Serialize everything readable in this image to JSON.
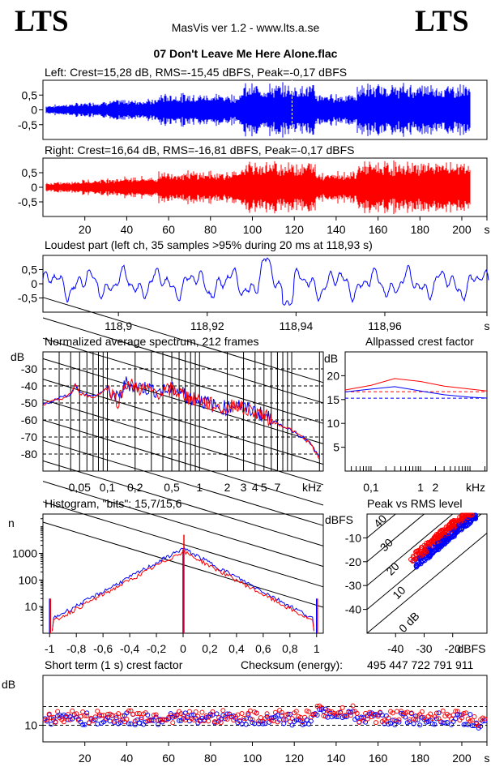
{
  "header": {
    "logo_left": "LTS",
    "logo_right": "LTS",
    "app": "MasVis ver 1.2 - www.lts.a.se",
    "track": "07 Don't Leave Me Here Alone.flac"
  },
  "colors": {
    "left": "#0000ff",
    "right": "#ff0000",
    "axis": "#000000"
  },
  "chart_data": [
    {
      "type": "line",
      "id": "left_waveform",
      "title": "Left: Crest=15,28 dB, RMS=-15,45 dBFS, Peak=-0,17 dBFS",
      "crest_db": 15.28,
      "rms_dbfs": -15.45,
      "peak_dbfs": -0.17,
      "ylim": [
        -1,
        1
      ],
      "yticks": [
        "0,5",
        "0",
        "-0,5"
      ],
      "xlim": [
        0,
        212
      ],
      "marker_s": 118.93
    },
    {
      "type": "line",
      "id": "right_waveform",
      "title": "Right: Crest=16,64 dB, RMS=-16,81 dBFS, Peak=-0,17 dBFS",
      "crest_db": 16.64,
      "rms_dbfs": -16.81,
      "peak_dbfs": -0.17,
      "ylim": [
        -1,
        1
      ],
      "yticks": [
        "0,5",
        "0",
        "-0,5"
      ],
      "xlim": [
        0,
        212
      ],
      "xticks": [
        "20",
        "40",
        "60",
        "80",
        "100",
        "120",
        "140",
        "160",
        "180",
        "200",
        "s"
      ]
    },
    {
      "type": "line",
      "id": "loudest_part",
      "title": "Loudest part (left  ch, 35 samples >95% during 20 ms at 118,93 s)",
      "xlim": [
        118.883,
        118.983
      ],
      "ylim": [
        -1,
        1
      ],
      "yticks": [
        "0,5",
        "0",
        "-0,5"
      ],
      "xticks": [
        "118,9",
        "118,92",
        "118,94",
        "118,96",
        "s"
      ]
    },
    {
      "type": "line",
      "id": "spectrum",
      "title": "Normalized average spectrum, 212 frames",
      "ylabel": "dB",
      "ylim": [
        -90,
        -20
      ],
      "yticks": [
        "-30",
        "-40",
        "-50",
        "-60",
        "-70",
        "-80"
      ],
      "xscale": "log",
      "xlim": [
        0.02,
        22
      ],
      "xticks": [
        "0,05",
        "0,1",
        "0,2",
        "0,5",
        "1",
        "2",
        "3",
        "4",
        "5",
        "7",
        "kHz"
      ],
      "series": [
        {
          "values": [
            [
              0.02,
              -51
            ],
            [
              0.03,
              -47
            ],
            [
              0.04,
              -45
            ],
            [
              0.045,
              -39
            ],
            [
              0.05,
              -44
            ],
            [
              0.07,
              -46
            ],
            [
              0.1,
              -42
            ],
            [
              0.13,
              -48
            ],
            [
              0.16,
              -38
            ],
            [
              0.2,
              -40
            ],
            [
              0.25,
              -41
            ],
            [
              0.3,
              -42
            ],
            [
              0.4,
              -43
            ],
            [
              0.5,
              -42
            ],
            [
              0.6,
              -43
            ],
            [
              0.7,
              -45
            ],
            [
              0.8,
              -47
            ],
            [
              1,
              -48
            ],
            [
              1.2,
              -50
            ],
            [
              1.5,
              -52
            ],
            [
              2,
              -53
            ],
            [
              2.5,
              -50
            ],
            [
              3,
              -53
            ],
            [
              4,
              -55
            ],
            [
              5,
              -57
            ],
            [
              6,
              -60
            ],
            [
              7,
              -62
            ],
            [
              10,
              -66
            ],
            [
              13,
              -70
            ],
            [
              16,
              -74
            ],
            [
              20,
              -82
            ]
          ]
        },
        {
          "values": [
            [
              0.02,
              -51
            ],
            [
              0.03,
              -48
            ],
            [
              0.04,
              -45
            ],
            [
              0.045,
              -39
            ],
            [
              0.05,
              -44
            ],
            [
              0.07,
              -47
            ],
            [
              0.1,
              -41
            ],
            [
              0.13,
              -49
            ],
            [
              0.16,
              -38
            ],
            [
              0.2,
              -41
            ],
            [
              0.25,
              -42
            ],
            [
              0.3,
              -43
            ],
            [
              0.4,
              -44
            ],
            [
              0.5,
              -42
            ],
            [
              0.6,
              -44
            ],
            [
              0.7,
              -45
            ],
            [
              0.8,
              -48
            ],
            [
              1,
              -48
            ],
            [
              1.2,
              -50
            ],
            [
              1.5,
              -52
            ],
            [
              2,
              -54
            ],
            [
              2.5,
              -50
            ],
            [
              3,
              -54
            ],
            [
              4,
              -55
            ],
            [
              5,
              -57
            ],
            [
              6,
              -61
            ],
            [
              7,
              -62
            ],
            [
              10,
              -66
            ],
            [
              13,
              -70
            ],
            [
              16,
              -74
            ],
            [
              20,
              -83
            ]
          ]
        }
      ]
    },
    {
      "type": "line",
      "id": "allpass_crest",
      "title": "Allpassed crest factor",
      "ylabel": "dB",
      "ylim": [
        0,
        25
      ],
      "yticks": [
        "20",
        "15",
        "10",
        "5"
      ],
      "xscale": "log",
      "xlim": [
        0.03,
        22
      ],
      "xticks": [
        "0,1",
        "1",
        "2",
        "kHz"
      ],
      "series": [
        {
          "values": [
            [
              0.03,
              16.6
            ],
            [
              0.1,
              17.2
            ],
            [
              0.3,
              17.7
            ],
            [
              1,
              16.8
            ],
            [
              3,
              16.0
            ],
            [
              10,
              15.5
            ],
            [
              22,
              15.3
            ]
          ]
        },
        {
          "values": [
            [
              0.03,
              17.0
            ],
            [
              0.1,
              18.0
            ],
            [
              0.3,
              19.4
            ],
            [
              1,
              18.8
            ],
            [
              3,
              17.8
            ],
            [
              10,
              17.2
            ],
            [
              22,
              16.8
            ]
          ]
        }
      ],
      "reference": [
        15.28,
        16.64
      ]
    },
    {
      "type": "bar",
      "id": "histogram",
      "title": "Histogram, \"bits\": 15,7/15,6",
      "ylabel": "n",
      "yscale": "log",
      "ylim": [
        1,
        30000
      ],
      "yticks": [
        "1000",
        "100",
        "10"
      ],
      "xlim": [
        -1.05,
        1.05
      ],
      "xticks": [
        "-1",
        "-0,8",
        "-0,6",
        "-0,4",
        "-0,2",
        "0",
        "0,2",
        "0,4",
        "0,6",
        "0,8",
        "1"
      ],
      "peak_count": 1400,
      "edge_count": 20
    },
    {
      "type": "scatter",
      "id": "peak_vs_rms",
      "title": "Peak vs RMS level",
      "ylabel": "dBFS",
      "xlabel": "dBFS",
      "xlim": [
        -50,
        -8
      ],
      "ylim": [
        -50,
        0
      ],
      "yticks": [
        "-10",
        "-20",
        "-30",
        "-40"
      ],
      "xticks": [
        "-40",
        "-30",
        "-20"
      ],
      "diagonals": [
        "40",
        "30",
        "20",
        "10",
        "0 dB"
      ]
    },
    {
      "type": "scatter",
      "id": "short_term_crest",
      "title": "Short term (1 s) crest factor",
      "checksum_label": "Checksum (energy):",
      "checksum_value": "495 447 722 791 911",
      "ylabel": "dB",
      "ylim": [
        6,
        22
      ],
      "yticks": [
        "10"
      ],
      "ref_lines": [
        14.5,
        10
      ],
      "xlim": [
        0,
        212
      ],
      "xticks": [
        "20",
        "40",
        "60",
        "80",
        "100",
        "120",
        "140",
        "160",
        "180",
        "200",
        "s"
      ]
    }
  ]
}
